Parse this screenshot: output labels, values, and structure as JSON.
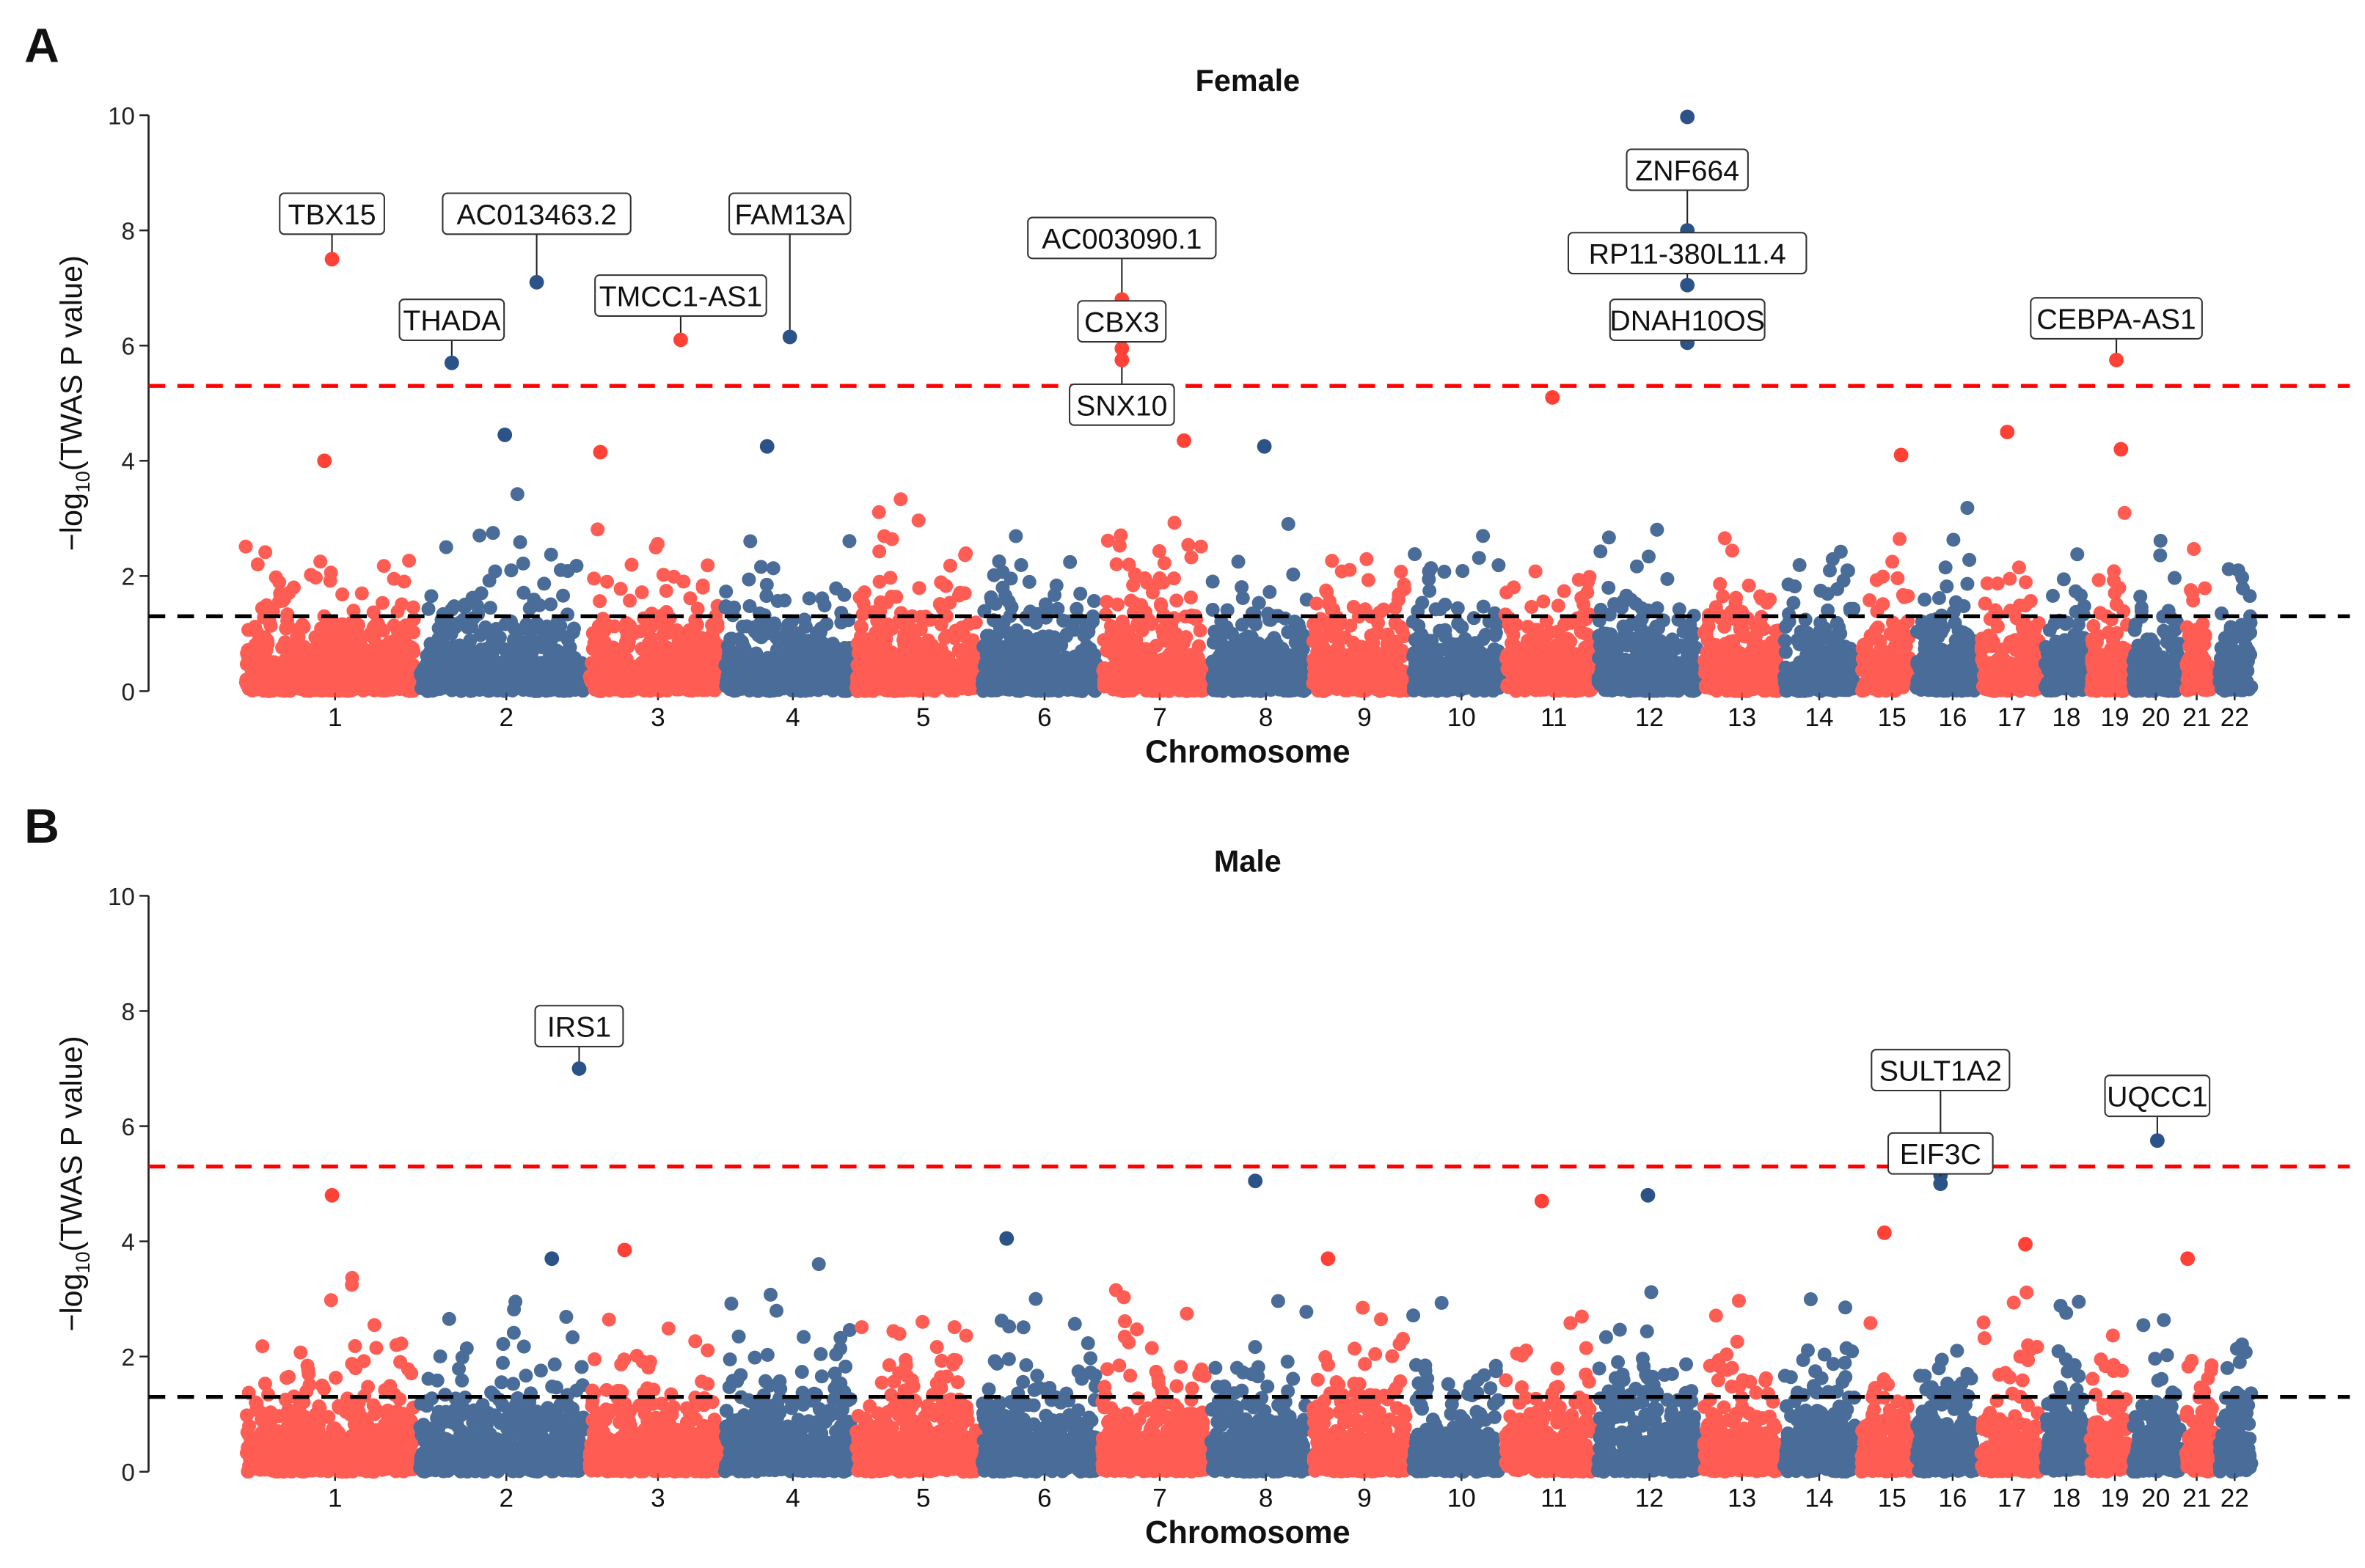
{
  "chart_data": [
    {
      "type": "scatter",
      "panel_letter": "A",
      "title": "Female",
      "xlabel": "Chromosome",
      "ylabel_prefix": "−log",
      "ylabel_sub": "10",
      "ylabel_suffix": "(TWAS P value)",
      "ylim": [
        0,
        10
      ],
      "yticks": [
        "0",
        "2",
        "4",
        "6",
        "8",
        "10"
      ],
      "xticks": [
        "1",
        "2",
        "3",
        "4",
        "5",
        "6",
        "7",
        "8",
        "9",
        "10",
        "11",
        "12",
        "13",
        "14",
        "15",
        "16",
        "17",
        "18",
        "19",
        "20",
        "21",
        "22"
      ],
      "thresholds": [
        {
          "value": 5.3,
          "color": "#FF0000",
          "style": "dashed"
        },
        {
          "value": 1.3,
          "color": "#000000",
          "style": "dashed"
        }
      ],
      "colors": {
        "odd_chromosomes": "#FF4136",
        "even_chromosomes": "#2B5388"
      },
      "grid": false,
      "labeled_points": [
        {
          "gene": "TBX15",
          "chr": 1,
          "value": 7.5
        },
        {
          "gene": "THADA",
          "chr": 2,
          "value": 5.7
        },
        {
          "gene": "AC013463.2",
          "chr": 2,
          "value": 7.1
        },
        {
          "gene": "TMCC1-AS1",
          "chr": 3,
          "value": 6.1
        },
        {
          "gene": "FAM13A",
          "chr": 4,
          "value": 6.15
        },
        {
          "gene": "AC003090.1",
          "chr": 7,
          "value": 6.8
        },
        {
          "gene": "CBX3",
          "chr": 7,
          "value": 5.95
        },
        {
          "gene": "SNX10",
          "chr": 7,
          "value": 5.75
        },
        {
          "gene": "ZNF664",
          "chr": 12,
          "value": 8.0
        },
        {
          "gene": "RP11-380L11.4",
          "chr": 12,
          "value": 7.05
        },
        {
          "gene": "DNAH10OS",
          "chr": 12,
          "value": 6.05
        },
        {
          "gene": "CEBPA-AS1",
          "chr": 19,
          "value": 5.75
        }
      ],
      "other_points": [
        {
          "chr": 12,
          "value": 9.97
        },
        {
          "chr": 11,
          "value": 5.1
        },
        {
          "chr": 17,
          "value": 4.5
        },
        {
          "chr": 2,
          "value": 4.45
        },
        {
          "chr": 7,
          "value": 4.35
        },
        {
          "chr": 8,
          "value": 4.25
        },
        {
          "chr": 4,
          "value": 4.25
        },
        {
          "chr": 19,
          "value": 4.2
        },
        {
          "chr": 3,
          "value": 4.15
        },
        {
          "chr": 15,
          "value": 4.1
        },
        {
          "chr": 1,
          "value": 4.0
        }
      ]
    },
    {
      "type": "scatter",
      "panel_letter": "B",
      "title": "Male",
      "xlabel": "Chromosome",
      "ylabel_prefix": "−log",
      "ylabel_sub": "10",
      "ylabel_suffix": "(TWAS P value)",
      "ylim": [
        0,
        10
      ],
      "yticks": [
        "0",
        "2",
        "4",
        "6",
        "8",
        "10"
      ],
      "xticks": [
        "1",
        "2",
        "3",
        "4",
        "5",
        "6",
        "7",
        "8",
        "9",
        "10",
        "11",
        "12",
        "13",
        "14",
        "15",
        "16",
        "17",
        "18",
        "19",
        "20",
        "21",
        "22"
      ],
      "thresholds": [
        {
          "value": 5.3,
          "color": "#FF0000",
          "style": "dashed"
        },
        {
          "value": 1.3,
          "color": "#000000",
          "style": "dashed"
        }
      ],
      "colors": {
        "odd_chromosomes": "#FF4136",
        "even_chromosomes": "#2B5388"
      },
      "grid": false,
      "labeled_points": [
        {
          "gene": "IRS1",
          "chr": 2,
          "value": 7.0
        },
        {
          "gene": "SULT1A2",
          "chr": 16,
          "value": 5.15
        },
        {
          "gene": "EIF3C",
          "chr": 16,
          "value": 5.0
        },
        {
          "gene": "UQCC1",
          "chr": 20,
          "value": 5.75
        }
      ],
      "other_points": [
        {
          "chr": 8,
          "value": 5.05
        },
        {
          "chr": 12,
          "value": 4.8
        },
        {
          "chr": 1,
          "value": 4.8
        },
        {
          "chr": 11,
          "value": 4.7
        },
        {
          "chr": 6,
          "value": 4.05
        },
        {
          "chr": 15,
          "value": 4.15
        },
        {
          "chr": 17,
          "value": 3.95
        },
        {
          "chr": 3,
          "value": 3.85
        },
        {
          "chr": 9,
          "value": 3.7
        },
        {
          "chr": 21,
          "value": 3.7
        },
        {
          "chr": 2,
          "value": 3.7
        }
      ]
    }
  ]
}
